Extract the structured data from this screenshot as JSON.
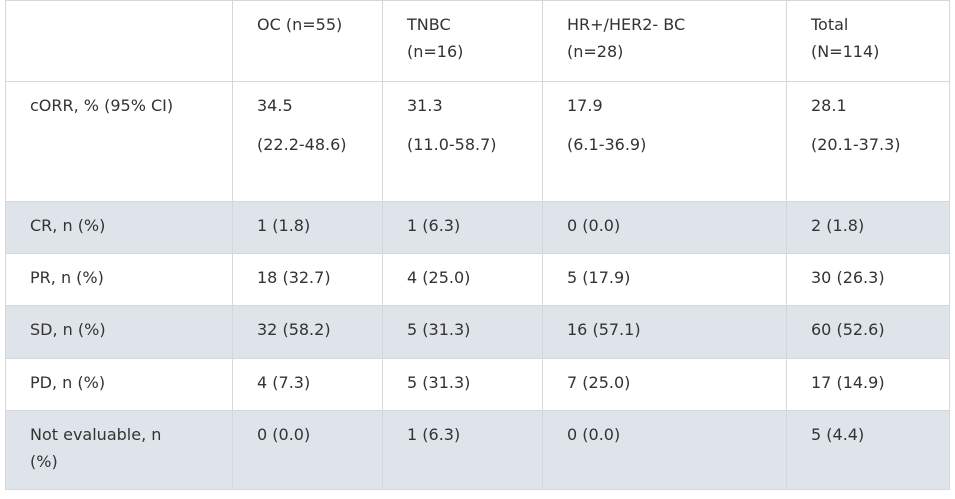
{
  "table": {
    "header": [
      [
        ""
      ],
      [
        "OC (n=55)"
      ],
      [
        "TNBC",
        "(n=16)"
      ],
      [
        "HR+/HER2- BC",
        "(n=28)"
      ],
      [
        "Total",
        "(N=114)"
      ]
    ],
    "rows": [
      [
        [
          "cORR, % (95% CI)"
        ],
        [
          "34.5",
          "(22.2-48.6)"
        ],
        [
          "31.3",
          "(11.0-58.7)"
        ],
        [
          "17.9",
          "(6.1-36.9)"
        ],
        [
          "28.1",
          "(20.1-37.3)"
        ]
      ],
      [
        [
          "CR, n (%)"
        ],
        [
          "1 (1.8)"
        ],
        [
          "1 (6.3)"
        ],
        [
          "0 (0.0)"
        ],
        [
          "2 (1.8)"
        ]
      ],
      [
        [
          "PR, n (%)"
        ],
        [
          "18 (32.7)"
        ],
        [
          "4 (25.0)"
        ],
        [
          "5 (17.9)"
        ],
        [
          "30 (26.3)"
        ]
      ],
      [
        [
          "SD, n (%)"
        ],
        [
          "32 (58.2)"
        ],
        [
          "5 (31.3)"
        ],
        [
          "16 (57.1)"
        ],
        [
          "60 (52.6)"
        ]
      ],
      [
        [
          "PD, n (%)"
        ],
        [
          "4 (7.3)"
        ],
        [
          "5 (31.3)"
        ],
        [
          "7 (25.0)"
        ],
        [
          "17 (14.9)"
        ]
      ],
      [
        [
          "Not evaluable, n",
          "(%)"
        ],
        [
          "0 (0.0)"
        ],
        [
          "1 (6.3)"
        ],
        [
          "0 (0.0)"
        ],
        [
          "5 (4.4)"
        ]
      ]
    ]
  }
}
